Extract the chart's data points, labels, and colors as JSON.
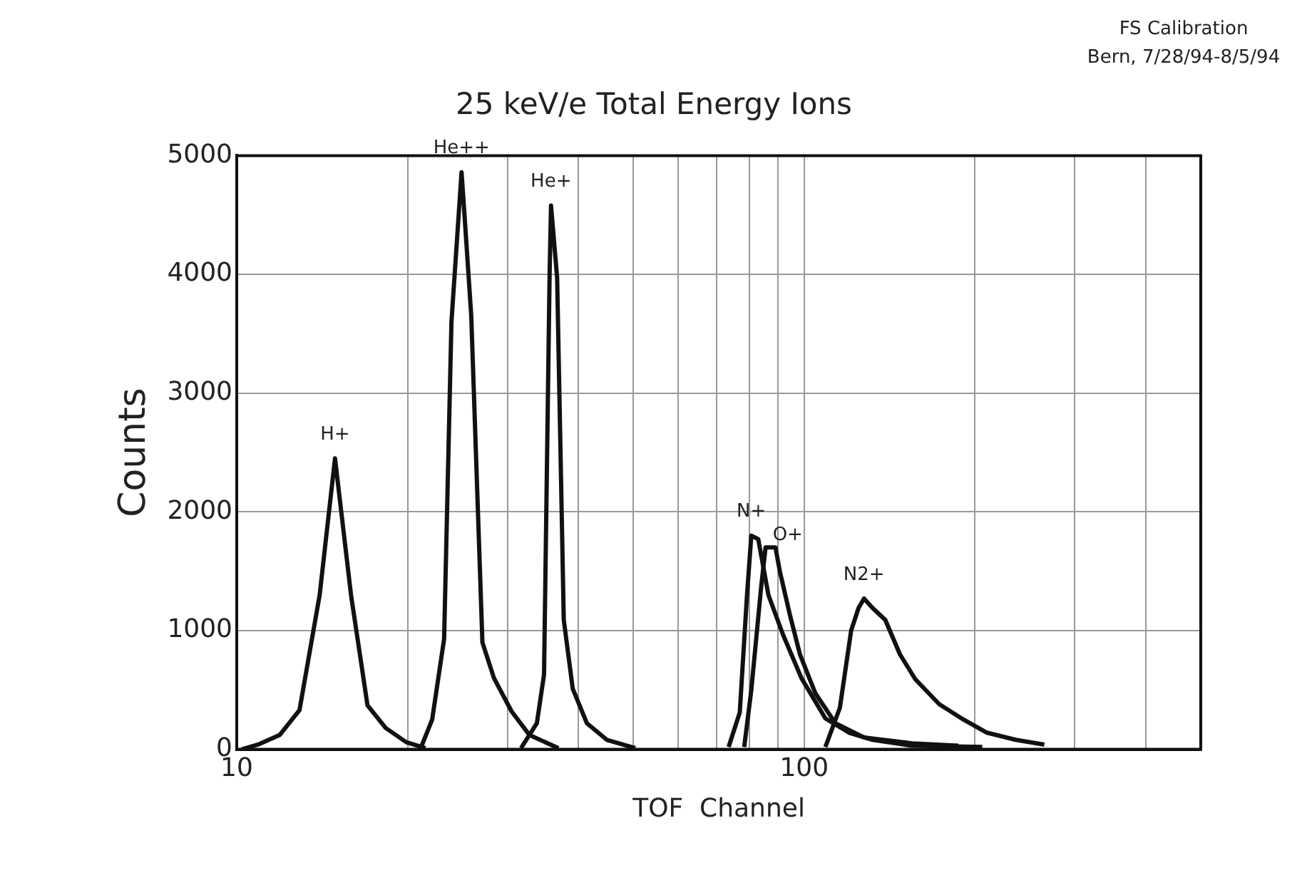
{
  "chart_data": {
    "type": "line",
    "title": "25 keV/e Total Energy Ions",
    "xlabel": "TOF  Channel",
    "ylabel": "Counts",
    "annotations": [
      "FS Calibration",
      "Bern, 7/28/94-8/5/94"
    ],
    "log": "x",
    "grid": true,
    "legend": false,
    "marker": "none",
    "line_style": "solid",
    "xlim": [
      10,
      500
    ],
    "xticks": [
      10,
      {
        "value": 20,
        "label": null
      },
      {
        "value": 30,
        "label": null
      },
      {
        "value": 40,
        "label": null
      },
      {
        "value": 50,
        "label": null
      },
      {
        "value": 60,
        "label": null
      },
      {
        "value": 70,
        "label": null
      },
      {
        "value": 80,
        "label": null
      },
      {
        "value": 90,
        "label": null
      },
      100,
      {
        "value": 200,
        "label": null
      },
      {
        "value": 300,
        "label": null
      },
      {
        "value": 400,
        "label": null
      },
      {
        "value": 500,
        "label": null
      }
    ],
    "ylim": [
      0,
      5000
    ],
    "yticks": [
      0,
      1000,
      2000,
      3000,
      4000,
      5000
    ],
    "series": [
      {
        "name": "H+",
        "color": "#111111",
        "x": [
          10.2,
          10.9,
          11.9,
          12.9,
          14.0,
          14.9,
          15.9,
          17.0,
          18.3,
          19.9,
          21.5
        ],
        "values": [
          0,
          40,
          120,
          330,
          1300,
          2450,
          1300,
          370,
          180,
          60,
          10
        ]
      },
      {
        "name": "He++",
        "color": "#111111",
        "x": [
          21.1,
          22.1,
          23.2,
          23.9,
          24.9,
          25.2,
          25.9,
          27.1,
          28.4,
          30.5,
          32.8,
          36.9
        ],
        "values": [
          10,
          250,
          930,
          3600,
          4860,
          4500,
          3650,
          900,
          600,
          320,
          120,
          10
        ]
      },
      {
        "name": "He+",
        "color": "#111111",
        "x": [
          31.7,
          33.8,
          34.8,
          35.6,
          35.8,
          36.7,
          37.7,
          39.1,
          41.4,
          44.9,
          50.4
        ],
        "values": [
          10,
          220,
          630,
          4020,
          4580,
          3970,
          1090,
          510,
          220,
          80,
          10
        ]
      },
      {
        "name": "N+",
        "color": "#111111",
        "x": [
          73.6,
          77.0,
          79.3,
          80.7,
          83.0,
          86.5,
          91.7,
          98.9,
          109,
          120,
          132,
          155,
          206
        ],
        "values": [
          20,
          310,
          1300,
          1800,
          1770,
          1300,
          970,
          600,
          260,
          140,
          80,
          30,
          20
        ]
      },
      {
        "name": "O+",
        "color": "#111111",
        "x": [
          78.4,
          80.7,
          84.0,
          85.5,
          89.0,
          90.6,
          94.4,
          98.3,
          104.7,
          113.5,
          127.5,
          155,
          187
        ],
        "values": [
          20,
          500,
          1370,
          1700,
          1700,
          1500,
          1130,
          800,
          470,
          220,
          100,
          50,
          30
        ]
      },
      {
        "name": "N2+",
        "color": "#111111",
        "x": [
          109,
          115.6,
          121,
          124.7,
          127.5,
          132,
          139,
          147.5,
          157,
          173,
          191,
          210,
          236,
          265
        ],
        "values": [
          20,
          350,
          1000,
          1190,
          1270,
          1190,
          1090,
          800,
          590,
          380,
          250,
          140,
          80,
          40
        ]
      }
    ]
  }
}
